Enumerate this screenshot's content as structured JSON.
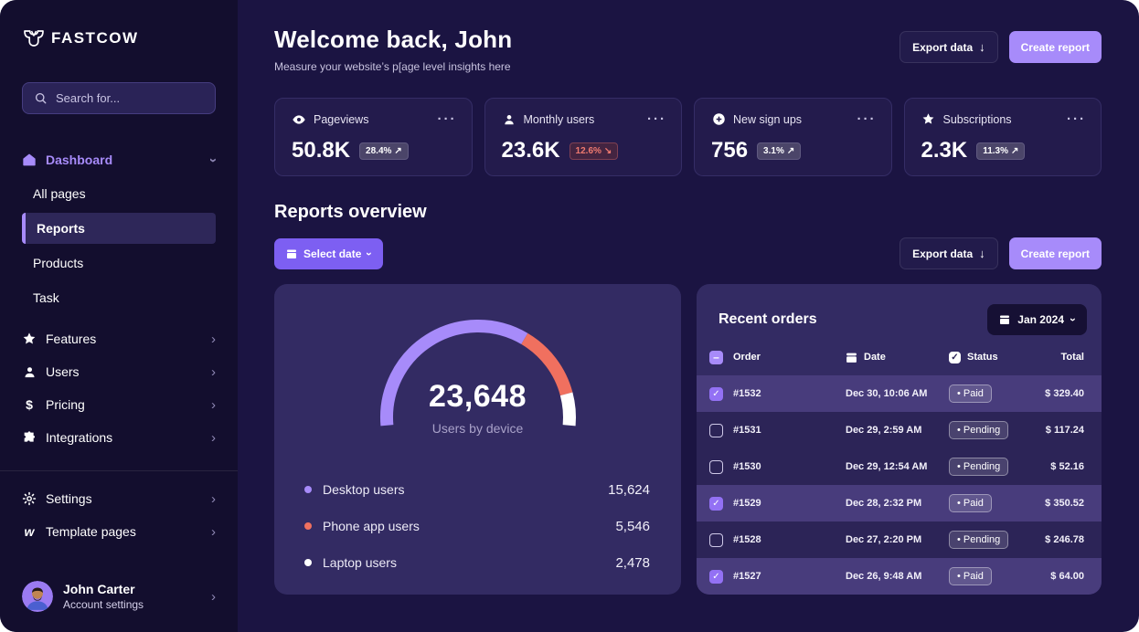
{
  "icons": {
    "dots_menu": "···",
    "download_arrow": "↓",
    "chevron": "›",
    "check": "✓",
    "minus": "–",
    "bullet": "•",
    "dollar": "$",
    "webflow_w": "w"
  },
  "colors": {
    "accent_purple": "#A78BFA",
    "button_purple": "#7D5FF2",
    "coral": "#F0705F",
    "negative_red": "#F07A70",
    "panel": "#332B63",
    "row_selected": "#483C7C"
  },
  "sidebar": {
    "logo": "FASTCOW",
    "search": {
      "placeholder": "Search for..."
    },
    "dashboard": {
      "label": "Dashboard",
      "children": [
        "All pages",
        "Reports",
        "Products",
        "Task"
      ],
      "active_child": "Reports"
    },
    "items": [
      {
        "label": "Features",
        "icon": "star-icon"
      },
      {
        "label": "Users",
        "icon": "user-icon"
      },
      {
        "label": "Pricing",
        "icon": "dollar-icon"
      },
      {
        "label": "Integrations",
        "icon": "puzzle-icon"
      }
    ],
    "footer_items": [
      {
        "label": "Settings",
        "icon": "gear-icon"
      },
      {
        "label": "Template pages",
        "icon": "webflow-icon"
      }
    ],
    "profile": {
      "name": "John Carter",
      "subtitle": "Account settings"
    }
  },
  "header": {
    "title": "Welcome back, John",
    "subtitle": "Measure your website’s p[age level insights here",
    "export_label": "Export data",
    "create_label": "Create report"
  },
  "stats": [
    {
      "label": "Pageviews",
      "icon": "eye-icon",
      "value": "50.8K",
      "change": "28.4%",
      "arrow": "↗",
      "trend": "up"
    },
    {
      "label": "Monthly users",
      "icon": "user-icon",
      "value": "23.6K",
      "change": "12.6%",
      "arrow": "↘",
      "trend": "down"
    },
    {
      "label": "New sign ups",
      "icon": "plus-circle-icon",
      "value": "756",
      "change": "3.1%",
      "arrow": "↗",
      "trend": "up"
    },
    {
      "label": "Subscriptions",
      "icon": "star-icon",
      "value": "2.3K",
      "change": "11.3%",
      "arrow": "↗",
      "trend": "up"
    }
  ],
  "reports": {
    "title": "Reports overview",
    "select_date_label": "Select date",
    "export_label": "Export data",
    "create_label": "Create report"
  },
  "chart_data": {
    "type": "gauge",
    "title": "Users by device",
    "total_display": "23,648",
    "total_value": 23648,
    "start_angle": 185,
    "sweep_angle": 190,
    "segments": [
      {
        "label": "Desktop users",
        "value": 15624,
        "display": "15,624",
        "color": "#A78BFA"
      },
      {
        "label": "Phone app users",
        "value": 5546,
        "display": "5,546",
        "color": "#F0705F"
      },
      {
        "label": "Laptop users",
        "value": 2478,
        "display": "2,478",
        "color": "#FFFFFF"
      }
    ],
    "legend_position": "below"
  },
  "orders": {
    "title": "Recent orders",
    "month_label": "Jan 2024",
    "columns": [
      "Order",
      "Date",
      "Status",
      "Total"
    ],
    "rows": [
      {
        "id": "#1532",
        "date": "Dec 30, 10:06 AM",
        "status": "Paid",
        "total": "$ 329.40",
        "checked": true
      },
      {
        "id": "#1531",
        "date": "Dec 29, 2:59 AM",
        "status": "Pending",
        "total": "$ 117.24",
        "checked": false
      },
      {
        "id": "#1530",
        "date": "Dec 29, 12:54 AM",
        "status": "Pending",
        "total": "$ 52.16",
        "checked": false
      },
      {
        "id": "#1529",
        "date": "Dec 28, 2:32 PM",
        "status": "Paid",
        "total": "$ 350.52",
        "checked": true
      },
      {
        "id": "#1528",
        "date": "Dec 27, 2:20 PM",
        "status": "Pending",
        "total": "$ 246.78",
        "checked": false
      },
      {
        "id": "#1527",
        "date": "Dec 26, 9:48 AM",
        "status": "Paid",
        "total": "$ 64.00",
        "checked": true
      }
    ]
  }
}
